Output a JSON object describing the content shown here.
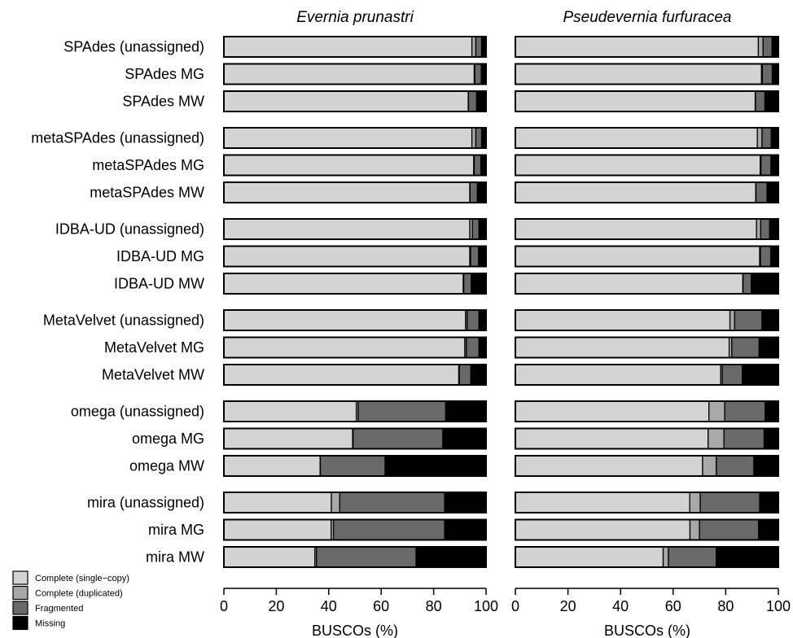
{
  "chart_data": {
    "type": "bar",
    "orientation": "horizontal",
    "stacked": true,
    "xlabel": "BUSCOs (%)",
    "xlim": [
      0,
      100
    ],
    "xticks": [
      "0",
      "20",
      "40",
      "60",
      "80",
      "100"
    ],
    "grid": false,
    "legend_position": "bottom-left",
    "categories": [
      "SPAdes (unassigned)",
      "SPAdes MG",
      "SPAdes MW",
      "metaSPAdes (unassigned)",
      "metaSPAdes MG",
      "metaSPAdes MW",
      "IDBA-UD (unassigned)",
      "IDBA-UD MG",
      "IDBA-UD MW",
      "MetaVelvet (unassigned)",
      "MetaVelvet MG",
      "MetaVelvet MW",
      "omega (unassigned)",
      "omega MG",
      "omega MW",
      "mira (unassigned)",
      "mira MG",
      "mira MW"
    ],
    "series_legend": [
      {
        "name": "Complete (single−copy)",
        "color": "#d3d3d3"
      },
      {
        "name": "Complete (duplicated)",
        "color": "#a8a8a8"
      },
      {
        "name": "Fragmented",
        "color": "#696969"
      },
      {
        "name": "Missing",
        "color": "#000000"
      }
    ],
    "panels": [
      {
        "title": "Evernia prunastri",
        "series": [
          {
            "name": "Complete (single−copy)",
            "values": [
              94.6,
              95.5,
              93.2,
              94.6,
              95.3,
              93.8,
              93.8,
              93.8,
              91.3,
              92.2,
              91.9,
              89.6,
              50.5,
              49.1,
              36.7,
              41.0,
              40.9,
              34.7
            ]
          },
          {
            "name": "Complete (duplicated)",
            "values": [
              1.5,
              0.2,
              0.1,
              1.5,
              0.2,
              0.1,
              1.0,
              0.3,
              0.2,
              0.6,
              0.6,
              0.2,
              0.7,
              0.2,
              0.1,
              3.2,
              0.9,
              0.6
            ]
          },
          {
            "name": "Fragmented",
            "values": [
              2.2,
              2.5,
              3.1,
              2.2,
              2.5,
              2.8,
              2.5,
              3.0,
              2.8,
              4.5,
              4.8,
              4.4,
              33.4,
              34.2,
              24.7,
              40.0,
              42.4,
              38.0
            ]
          },
          {
            "name": "Missing",
            "values": [
              1.7,
              1.8,
              3.6,
              1.7,
              2.0,
              3.3,
              2.7,
              2.9,
              5.7,
              2.7,
              2.7,
              5.8,
              15.4,
              16.5,
              38.5,
              15.8,
              15.8,
              26.7
            ]
          }
        ]
      },
      {
        "title": "Pseudevernia furfuracea",
        "series": [
          {
            "name": "Complete (single−copy)",
            "values": [
              92.4,
              93.6,
              91.2,
              92.0,
              93.1,
              91.4,
              91.7,
              92.9,
              86.5,
              81.6,
              81.3,
              78.1,
              73.6,
              73.3,
              71.2,
              66.3,
              66.4,
              56.2
            ]
          },
          {
            "name": "Complete (duplicated)",
            "values": [
              1.8,
              0.3,
              0.1,
              1.8,
              0.3,
              0.1,
              1.6,
              0.3,
              0.1,
              1.8,
              1.0,
              0.6,
              6.0,
              6.0,
              5.2,
              4.0,
              3.6,
              2.0
            ]
          },
          {
            "name": "Fragmented",
            "values": [
              3.4,
              3.8,
              3.6,
              3.5,
              3.8,
              4.2,
              3.4,
              3.9,
              3.1,
              10.4,
              10.4,
              7.6,
              15.4,
              15.3,
              14.3,
              22.6,
              22.5,
              18.2
            ]
          },
          {
            "name": "Missing",
            "values": [
              2.4,
              2.3,
              5.1,
              2.7,
              2.8,
              4.3,
              3.3,
              2.9,
              10.3,
              6.2,
              7.3,
              13.7,
              5.0,
              5.4,
              9.3,
              7.1,
              7.5,
              23.6
            ]
          }
        ]
      }
    ]
  }
}
